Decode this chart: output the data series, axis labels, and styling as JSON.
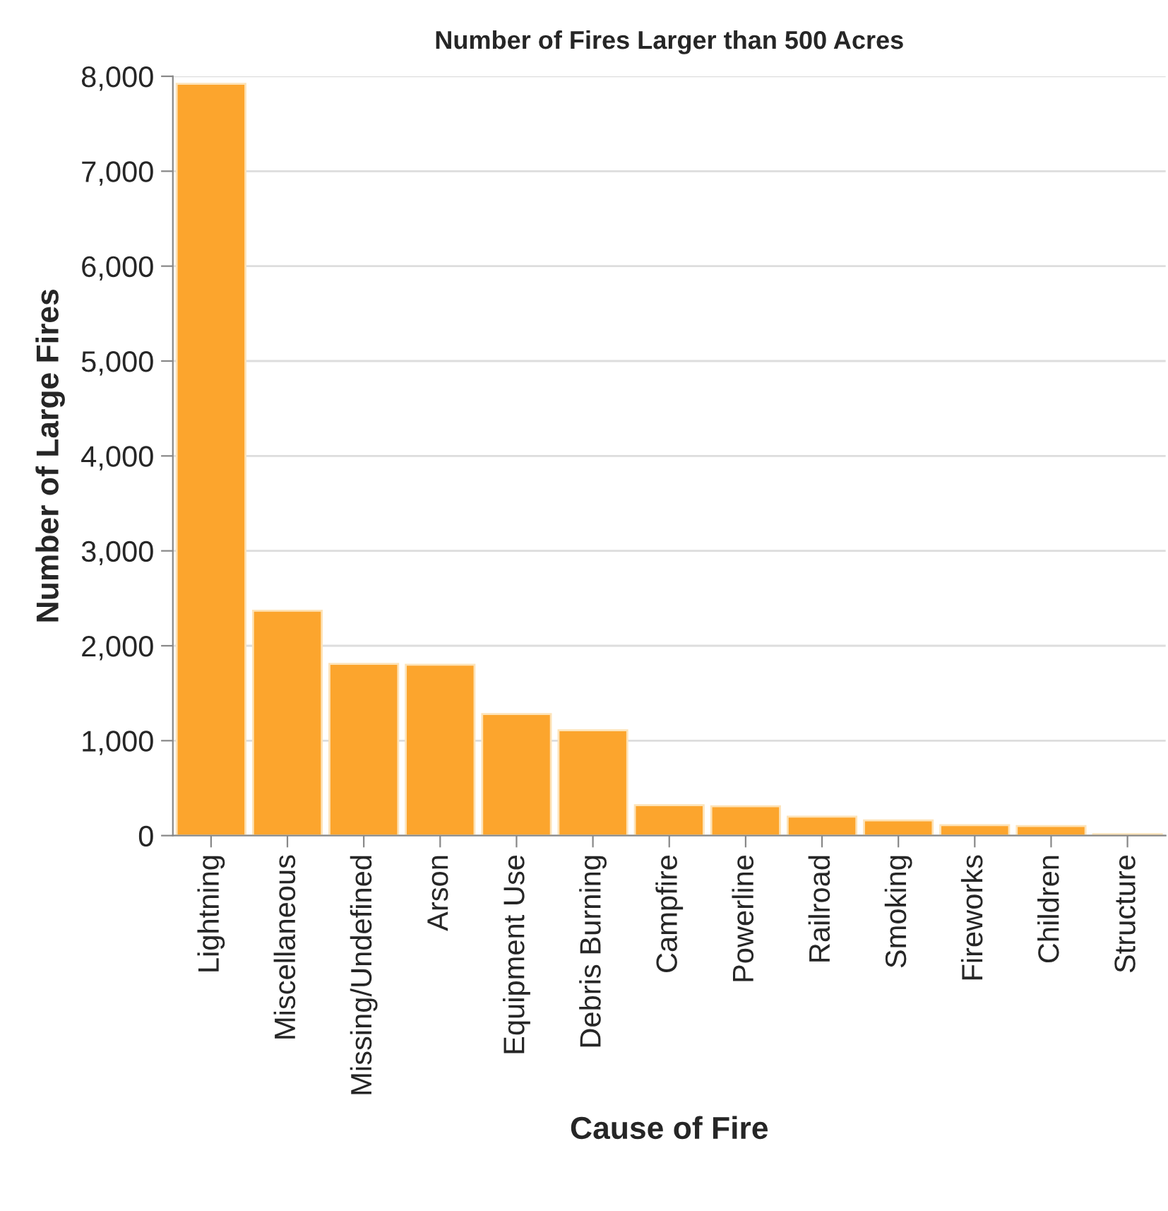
{
  "chart_data": {
    "type": "bar",
    "title": "Number of Fires Larger than 500 Acres",
    "xlabel": "Cause of Fire",
    "ylabel": "Number of Large Fires",
    "categories": [
      "Lightning",
      "Miscellaneous",
      "Missing/Undefined",
      "Arson",
      "Equipment Use",
      "Debris Burning",
      "Campfire",
      "Powerline",
      "Railroad",
      "Smoking",
      "Fireworks",
      "Children",
      "Structure"
    ],
    "values": [
      7920,
      2370,
      1810,
      1800,
      1280,
      1110,
      320,
      310,
      200,
      160,
      110,
      100,
      15
    ],
    "color": "#fca52d",
    "ylim": [
      0,
      8000
    ],
    "yticks": [
      {
        "value": 0,
        "label": "0"
      },
      {
        "value": 1000,
        "label": "1,000"
      },
      {
        "value": 2000,
        "label": "2,000"
      },
      {
        "value": 3000,
        "label": "3,000"
      },
      {
        "value": 4000,
        "label": "4,000"
      },
      {
        "value": 5000,
        "label": "5,000"
      },
      {
        "value": 6000,
        "label": "6,000"
      },
      {
        "value": 7000,
        "label": "7,000"
      },
      {
        "value": 8000,
        "label": "8,000"
      }
    ],
    "grid": "y"
  }
}
